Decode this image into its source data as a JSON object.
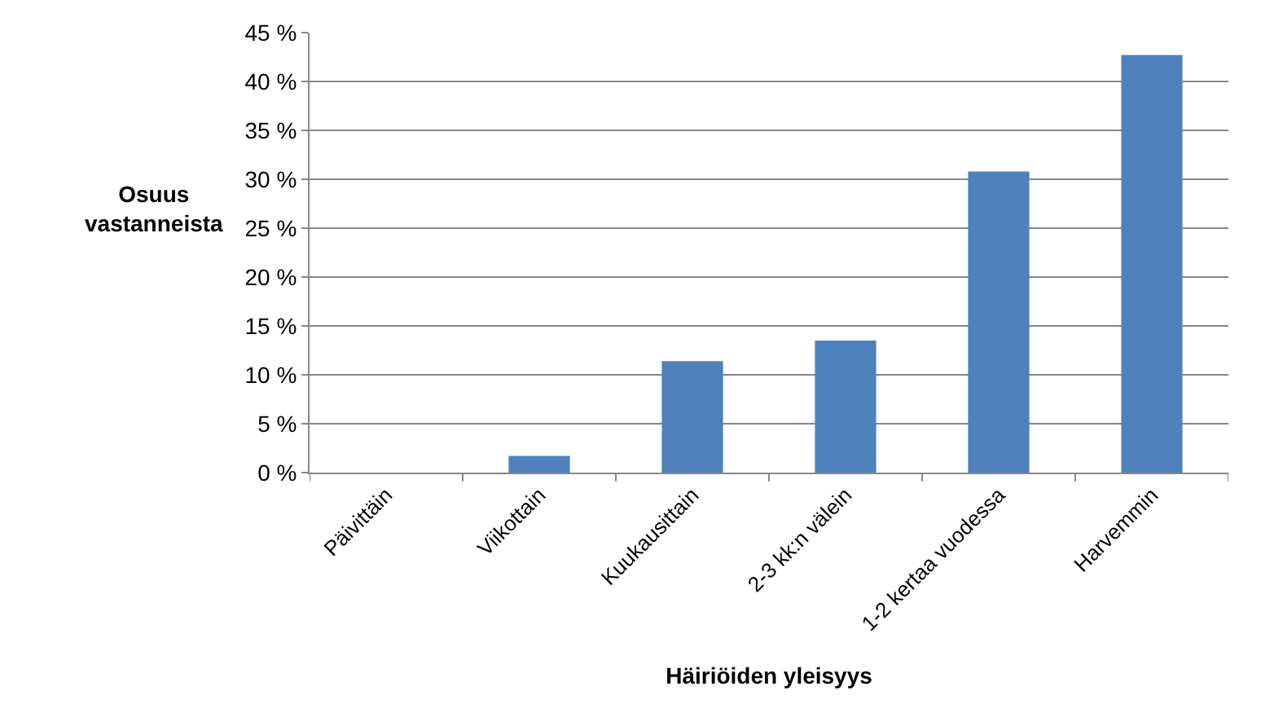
{
  "chart_data": {
    "type": "bar",
    "xlabel": "Häiriöiden yleisyys",
    "ylabel": "Osuus vastanneista",
    "categories": [
      "Päivittäin",
      "Viikottain",
      "Kuukausittain",
      "2-3 kk:n välein",
      "1-2 kertaa vuodessa",
      "Harvemmin"
    ],
    "values": [
      0,
      1.7,
      11.4,
      13.5,
      30.8,
      42.7
    ],
    "color": "#4f81bd",
    "ylim": [
      0,
      45
    ],
    "yticks": [
      {
        "value": 0,
        "label": "0 %"
      },
      {
        "value": 5,
        "label": "5 %"
      },
      {
        "value": 10,
        "label": "10 %"
      },
      {
        "value": 15,
        "label": "15 %"
      },
      {
        "value": 20,
        "label": "20 %"
      },
      {
        "value": 25,
        "label": "25 %"
      },
      {
        "value": 30,
        "label": "30 %"
      },
      {
        "value": 35,
        "label": "35 %"
      },
      {
        "value": 40,
        "label": "40 %"
      },
      {
        "value": 45,
        "label": "45 %"
      }
    ],
    "grid": "y",
    "legend": false
  }
}
